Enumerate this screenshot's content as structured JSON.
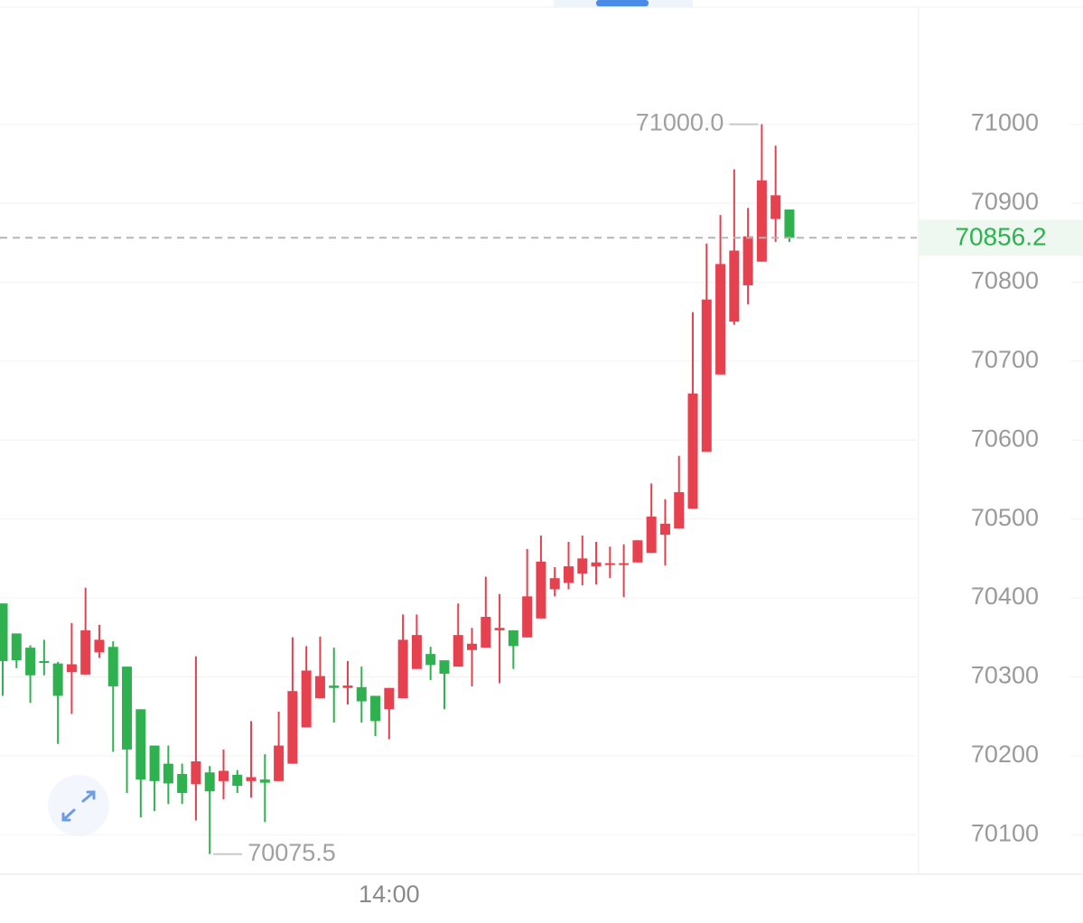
{
  "chart_data": {
    "type": "candlestick",
    "categories": [
      null,
      null,
      null,
      null,
      null,
      null,
      null,
      null,
      null,
      null,
      null,
      null,
      null,
      null,
      null,
      null,
      null,
      null,
      null,
      null,
      null,
      null,
      null,
      null,
      null,
      null,
      null,
      null,
      "14:00",
      null,
      null,
      null,
      null,
      null,
      null,
      null,
      null,
      null,
      null,
      null,
      null,
      null,
      null,
      null,
      null,
      null,
      null,
      null,
      null,
      null,
      null,
      null,
      null,
      null,
      null,
      null,
      null,
      null
    ],
    "open": [
      70393,
      70355,
      70337,
      70320,
      70317,
      70306,
      70303,
      70331,
      70338,
      70313,
      70259,
      70213,
      70190,
      70177,
      70164,
      70179,
      70168,
      70176,
      70168,
      70170,
      70168,
      70190,
      70236,
      70273,
      70289,
      70286,
      70287,
      70276,
      70259,
      70273,
      70310,
      70329,
      70321,
      70313,
      70334,
      70337,
      70359,
      70359,
      70350,
      70374,
      70411,
      70419,
      70431,
      70440,
      70442,
      70443,
      70445,
      70457,
      70480,
      70488,
      70513,
      70585,
      70683,
      70750,
      70796,
      70826,
      70880,
      70892
    ],
    "high": [
      70393,
      70355,
      70340,
      70347,
      70319,
      70368,
      70413,
      70366,
      70345,
      70313,
      70259,
      70213,
      70213,
      70190,
      70326,
      70187,
      70208,
      70182,
      70244,
      70202,
      70256,
      70350,
      70339,
      70351,
      70337,
      70320,
      70313,
      70276,
      70286,
      70379,
      70379,
      70338,
      70321,
      70393,
      70362,
      70427,
      70405,
      70359,
      70462,
      70479,
      70439,
      70471,
      70479,
      70471,
      70465,
      70468,
      70473,
      70545,
      70525,
      70580,
      70762,
      70849,
      70885,
      70943,
      70894,
      71000,
      70973,
      70892
    ],
    "low": [
      70276,
      70311,
      70267,
      70302,
      70215,
      70253,
      70303,
      70324,
      70205,
      70153,
      70122,
      70130,
      70139,
      70139,
      70118,
      70075.5,
      70145,
      70153,
      70147,
      70116,
      70168,
      70190,
      70236,
      70273,
      70242,
      70265,
      70242,
      70225,
      70221,
      70273,
      70310,
      70296,
      70259,
      70313,
      70288,
      70337,
      70292,
      70310,
      70350,
      70374,
      70402,
      70411,
      70416,
      70417,
      70425,
      70401,
      70445,
      70457,
      70441,
      70488,
      70513,
      70585,
      70683,
      70746,
      70772,
      70826,
      70851,
      70851
    ],
    "close": [
      70320,
      70321,
      70302,
      70318,
      70276,
      70316,
      70359,
      70347,
      70288,
      70208,
      70170,
      70168,
      70165,
      70153,
      70193,
      70155,
      70181,
      70162,
      70173,
      70166,
      70213,
      70282,
      70308,
      70301,
      70286,
      70289,
      70269,
      70244,
      70286,
      70347,
      70353,
      70315,
      70304,
      70353,
      70342,
      70376,
      70362,
      70339,
      70402,
      70446,
      70425,
      70440,
      70450,
      70445,
      70444,
      70444,
      70473,
      70503,
      70494,
      70534,
      70659,
      70778,
      70823,
      70840,
      70858,
      70929,
      70910,
      70856.2
    ],
    "up_color": "#e5414f",
    "down_color": "#2fb150",
    "ylim": [
      70050,
      71146
    ],
    "yticks": [
      70100,
      70200,
      70300,
      70400,
      70500,
      70600,
      70700,
      70800,
      70900,
      71000
    ],
    "grid": true,
    "last_price": 70856.2,
    "annotations": [
      {
        "value": 71000,
        "label": "71000.0"
      },
      {
        "value": 70075.5,
        "label": "70075.5"
      }
    ]
  }
}
